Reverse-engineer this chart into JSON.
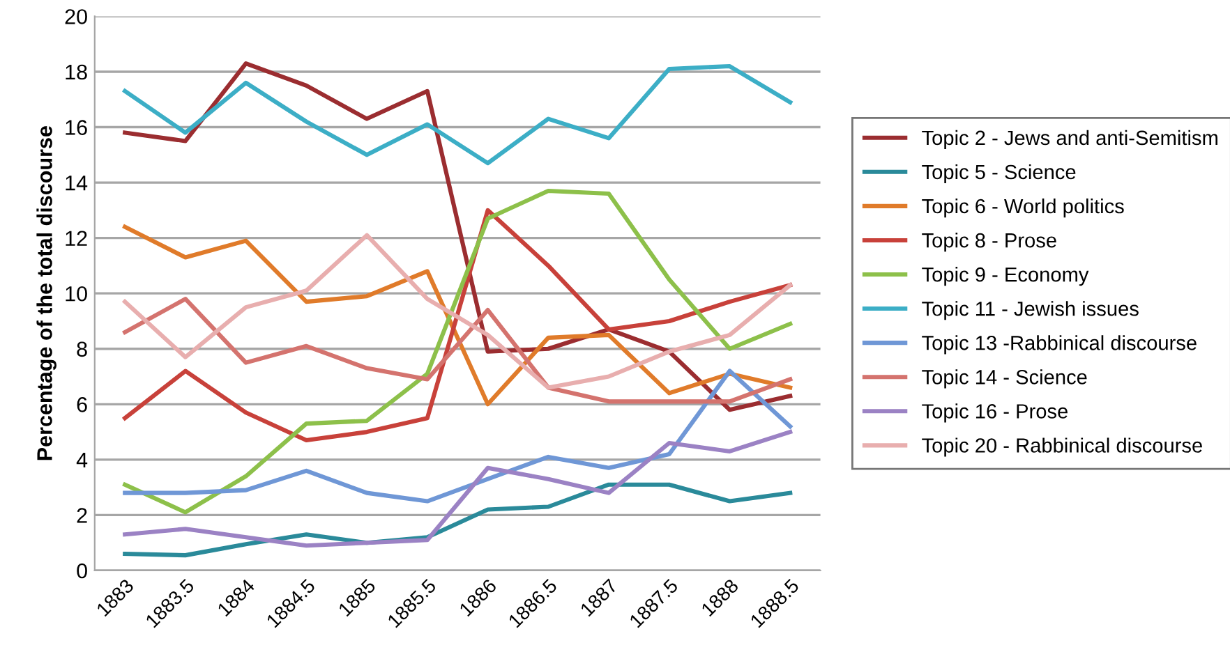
{
  "chart_data": {
    "type": "line",
    "ylabel": "Percentage of the total discourse",
    "categories": [
      "1883",
      "1883.5",
      "1884",
      "1884.5",
      "1885",
      "1885.5",
      "1886",
      "1886.5",
      "1887",
      "1887.5",
      "1888",
      "1888.5"
    ],
    "ylim": [
      0,
      20
    ],
    "yticks": [
      0,
      2,
      4,
      6,
      8,
      10,
      12,
      14,
      16,
      18,
      20
    ],
    "grid": "y",
    "legend": "right",
    "marker": "none",
    "line_style": "solid",
    "series": [
      {
        "name": "Topic 2 - Jews and anti-Semitism",
        "color": "#9b2d30",
        "values": [
          15.8,
          15.5,
          18.3,
          17.5,
          16.3,
          17.3,
          7.9,
          8.0,
          8.7,
          7.9,
          5.8,
          6.3
        ]
      },
      {
        "name": "Topic 5 - Science",
        "color": "#2a8a9a",
        "values": [
          0.6,
          0.55,
          0.95,
          1.3,
          1.0,
          1.2,
          2.2,
          2.3,
          3.1,
          3.1,
          2.5,
          2.8
        ]
      },
      {
        "name": "Topic 6 - World politics",
        "color": "#e07b2a",
        "values": [
          12.4,
          11.3,
          11.9,
          9.7,
          9.9,
          10.8,
          6.0,
          8.4,
          8.5,
          6.4,
          7.1,
          6.6
        ]
      },
      {
        "name": "Topic 8 - Prose",
        "color": "#c8413a",
        "values": [
          5.5,
          7.2,
          5.7,
          4.7,
          5.0,
          5.5,
          13.0,
          11.0,
          8.7,
          9.0,
          9.7,
          10.3
        ]
      },
      {
        "name": "Topic 9 - Economy",
        "color": "#8dc04a",
        "values": [
          3.1,
          2.1,
          3.4,
          5.3,
          5.4,
          7.1,
          12.7,
          13.7,
          13.6,
          10.5,
          8.0,
          8.9
        ]
      },
      {
        "name": "Topic 11 - Jewish issues",
        "color": "#3caec6",
        "values": [
          17.3,
          15.8,
          17.6,
          16.2,
          15.0,
          16.1,
          14.7,
          16.3,
          15.6,
          18.1,
          18.2,
          16.9
        ]
      },
      {
        "name": "Topic 13 -Rabbinical discourse",
        "color": "#6f97d6",
        "values": [
          2.8,
          2.8,
          2.9,
          3.6,
          2.8,
          2.5,
          3.3,
          4.1,
          3.7,
          4.2,
          7.2,
          5.2
        ]
      },
      {
        "name": "Topic 14 - Science",
        "color": "#d4736e",
        "values": [
          8.6,
          9.8,
          7.5,
          8.1,
          7.3,
          6.9,
          9.4,
          6.6,
          6.1,
          6.1,
          6.1,
          6.9
        ]
      },
      {
        "name": "Topic 16 - Prose",
        "color": "#9b82c4",
        "values": [
          1.3,
          1.5,
          1.2,
          0.9,
          1.0,
          1.1,
          3.7,
          3.3,
          2.8,
          4.6,
          4.3,
          5.0
        ]
      },
      {
        "name": "Topic 20 - Rabbinical discourse",
        "color": "#e8aeae",
        "values": [
          9.7,
          7.7,
          9.5,
          10.1,
          12.1,
          9.8,
          8.5,
          6.6,
          7.0,
          7.9,
          8.5,
          10.3
        ]
      }
    ]
  }
}
